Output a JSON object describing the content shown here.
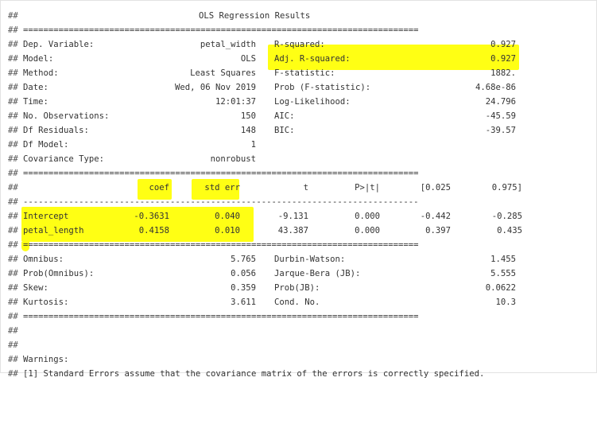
{
  "prefix": "##",
  "title": "OLS Regression Results",
  "rule_double": "==============================================================================",
  "rule_single": "------------------------------------------------------------------------------",
  "highlight_color": "#ffff00",
  "model_info": {
    "left": [
      {
        "label": "Dep. Variable:",
        "value": "petal_width"
      },
      {
        "label": "Model:",
        "value": "OLS"
      },
      {
        "label": "Method:",
        "value": "Least Squares"
      },
      {
        "label": "Date:",
        "value": "Wed, 06 Nov 2019"
      },
      {
        "label": "Time:",
        "value": "12:01:37"
      },
      {
        "label": "No. Observations:",
        "value": "150"
      },
      {
        "label": "Df Residuals:",
        "value": "148"
      },
      {
        "label": "Df Model:",
        "value": "1"
      },
      {
        "label": "Covariance Type:",
        "value": "nonrobust"
      }
    ],
    "right": [
      {
        "label": "R-squared:",
        "value": "0.927"
      },
      {
        "label": "Adj. R-squared:",
        "value": "0.927"
      },
      {
        "label": "F-statistic:",
        "value": "1882."
      },
      {
        "label": "Prob (F-statistic):",
        "value": "4.68e-86"
      },
      {
        "label": "Log-Likelihood:",
        "value": "24.796"
      },
      {
        "label": "AIC:",
        "value": "-45.59"
      },
      {
        "label": "BIC:",
        "value": "-39.57"
      }
    ]
  },
  "coef_table": {
    "headers": [
      "coef",
      "std err",
      "t",
      "P>|t|",
      "[0.025",
      "0.975]"
    ],
    "rows": [
      {
        "name": "Intercept",
        "cells": [
          "-0.3631",
          "0.040",
          "-9.131",
          "0.000",
          "-0.442",
          "-0.285"
        ]
      },
      {
        "name": "petal_length",
        "cells": [
          "0.4158",
          "0.010",
          "43.387",
          "0.000",
          "0.397",
          "0.435"
        ]
      }
    ]
  },
  "diagnostics": {
    "left": [
      {
        "label": "Omnibus:",
        "value": "5.765"
      },
      {
        "label": "Prob(Omnibus):",
        "value": "0.056"
      },
      {
        "label": "Skew:",
        "value": "0.359"
      },
      {
        "label": "Kurtosis:",
        "value": "3.611"
      }
    ],
    "right": [
      {
        "label": "Durbin-Watson:",
        "value": "1.455"
      },
      {
        "label": "Jarque-Bera (JB):",
        "value": "5.555"
      },
      {
        "label": "Prob(JB):",
        "value": "0.0622"
      },
      {
        "label": "Cond. No.",
        "value": "10.3"
      }
    ]
  },
  "warnings": {
    "heading": "Warnings:",
    "items": [
      "[1] Standard Errors assume that the covariance matrix of the errors is correctly specified."
    ]
  }
}
